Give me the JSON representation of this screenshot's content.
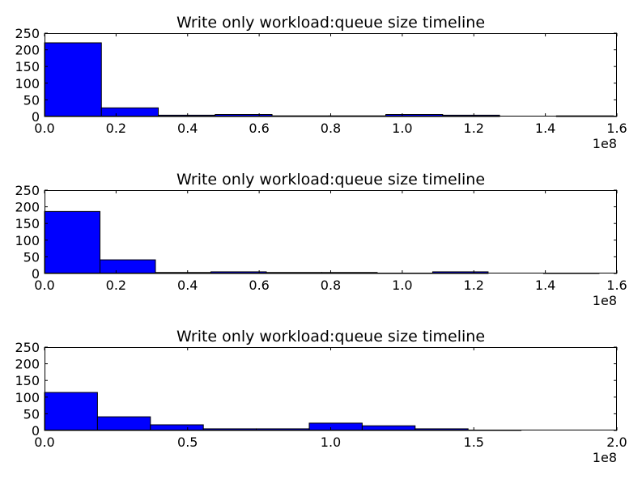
{
  "chart_data": [
    {
      "type": "histogram",
      "title": "Write only workload:queue size timeline",
      "xlim": [
        0,
        1.6
      ],
      "ylim": [
        0,
        250
      ],
      "x_offset_label": "1e8",
      "x_ticks": [
        0.0,
        0.2,
        0.4,
        0.6,
        0.8,
        1.0,
        1.2,
        1.4,
        1.6
      ],
      "x_tick_labels": [
        "0.0",
        "0.2",
        "0.4",
        "0.6",
        "0.8",
        "1.0",
        "1.2",
        "1.4",
        "1.6"
      ],
      "y_ticks": [
        0,
        50,
        100,
        150,
        200,
        250
      ],
      "y_tick_labels": [
        "0",
        "50",
        "100",
        "150",
        "200",
        "250"
      ],
      "bins": [
        {
          "x0": 0.0,
          "x1": 0.159,
          "count": 221
        },
        {
          "x0": 0.159,
          "x1": 0.318,
          "count": 26
        },
        {
          "x0": 0.318,
          "x1": 0.477,
          "count": 4
        },
        {
          "x0": 0.477,
          "x1": 0.636,
          "count": 6
        },
        {
          "x0": 0.636,
          "x1": 0.795,
          "count": 2
        },
        {
          "x0": 0.795,
          "x1": 0.954,
          "count": 2
        },
        {
          "x0": 0.954,
          "x1": 1.113,
          "count": 6
        },
        {
          "x0": 1.113,
          "x1": 1.272,
          "count": 4
        },
        {
          "x0": 1.272,
          "x1": 1.431,
          "count": 0
        },
        {
          "x0": 1.431,
          "x1": 1.59,
          "count": 2
        }
      ]
    },
    {
      "type": "histogram",
      "title": "Write only workload:queue size timeline",
      "xlim": [
        0,
        1.6
      ],
      "ylim": [
        0,
        250
      ],
      "x_offset_label": "1e8",
      "x_ticks": [
        0.0,
        0.2,
        0.4,
        0.6,
        0.8,
        1.0,
        1.2,
        1.4,
        1.6
      ],
      "x_tick_labels": [
        "0.0",
        "0.2",
        "0.4",
        "0.6",
        "0.8",
        "1.0",
        "1.2",
        "1.4",
        "1.6"
      ],
      "y_ticks": [
        0,
        50,
        100,
        150,
        200,
        250
      ],
      "y_tick_labels": [
        "0",
        "50",
        "100",
        "150",
        "200",
        "250"
      ],
      "bins": [
        {
          "x0": 0.0,
          "x1": 0.155,
          "count": 186
        },
        {
          "x0": 0.155,
          "x1": 0.31,
          "count": 41
        },
        {
          "x0": 0.31,
          "x1": 0.465,
          "count": 3
        },
        {
          "x0": 0.465,
          "x1": 0.62,
          "count": 5
        },
        {
          "x0": 0.62,
          "x1": 0.775,
          "count": 3
        },
        {
          "x0": 0.775,
          "x1": 0.93,
          "count": 3
        },
        {
          "x0": 0.93,
          "x1": 1.085,
          "count": 1
        },
        {
          "x0": 1.085,
          "x1": 1.24,
          "count": 5
        },
        {
          "x0": 1.24,
          "x1": 1.395,
          "count": 0
        },
        {
          "x0": 1.395,
          "x1": 1.55,
          "count": 1
        }
      ]
    },
    {
      "type": "histogram",
      "title": "Write only workload:queue size timeline",
      "xlim": [
        0,
        2.0
      ],
      "ylim": [
        0,
        250
      ],
      "x_offset_label": "1e8",
      "x_ticks": [
        0.0,
        0.5,
        1.0,
        1.5,
        2.0
      ],
      "x_tick_labels": [
        "0.0",
        "0.5",
        "1.0",
        "1.5",
        "2.0"
      ],
      "y_ticks": [
        0,
        50,
        100,
        150,
        200,
        250
      ],
      "y_tick_labels": [
        "0",
        "50",
        "100",
        "150",
        "200",
        "250"
      ],
      "bins": [
        {
          "x0": 0.0,
          "x1": 0.185,
          "count": 114
        },
        {
          "x0": 0.185,
          "x1": 0.37,
          "count": 41
        },
        {
          "x0": 0.37,
          "x1": 0.555,
          "count": 17
        },
        {
          "x0": 0.555,
          "x1": 0.74,
          "count": 5
        },
        {
          "x0": 0.74,
          "x1": 0.925,
          "count": 5
        },
        {
          "x0": 0.925,
          "x1": 1.11,
          "count": 22
        },
        {
          "x0": 1.11,
          "x1": 1.295,
          "count": 14
        },
        {
          "x0": 1.295,
          "x1": 1.48,
          "count": 5
        },
        {
          "x0": 1.48,
          "x1": 1.665,
          "count": 1
        },
        {
          "x0": 1.665,
          "x1": 1.85,
          "count": 0
        }
      ]
    }
  ]
}
